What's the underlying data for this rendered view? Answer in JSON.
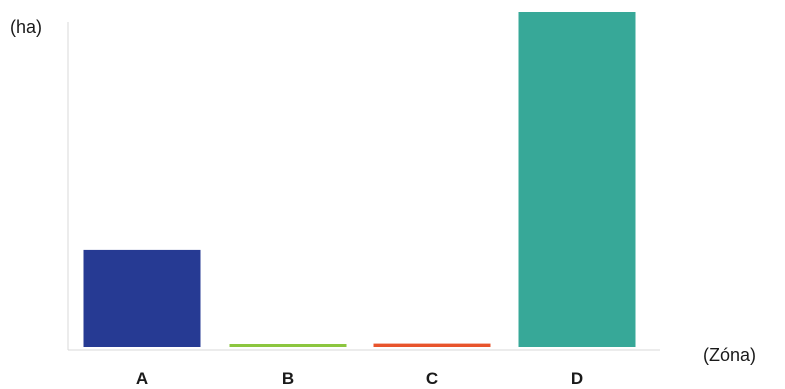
{
  "chart_data": {
    "type": "bar",
    "xlabel": "(Zóna)",
    "ylabel": "(ha)",
    "categories": [
      "A",
      "B",
      "C",
      "D"
    ],
    "values": [
      29,
      0.8,
      1,
      100
    ],
    "colors": [
      "#263a93",
      "#8cc63f",
      "#e8542c",
      "#37a898"
    ],
    "ylim": [
      0,
      100
    ],
    "grid": false,
    "y_tick_labels_shown": false
  }
}
